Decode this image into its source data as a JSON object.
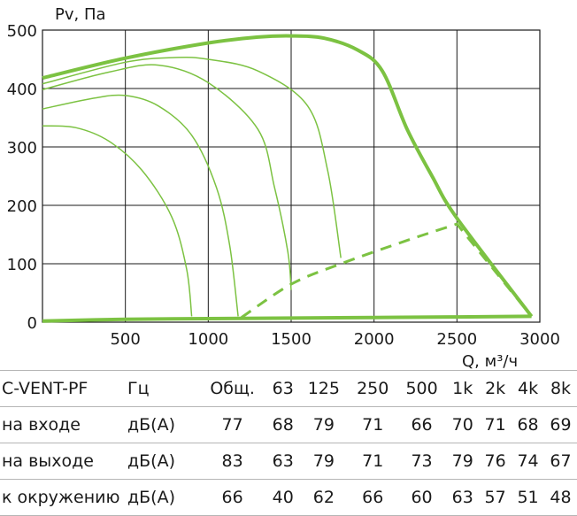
{
  "chart_data": {
    "type": "line",
    "ylabel": "Pv, Па",
    "xlabel": "Q, м³/ч",
    "xlim": [
      0,
      3000
    ],
    "ylim": [
      0,
      500
    ],
    "x_ticks": [
      500,
      1000,
      1500,
      2000,
      2500,
      3000
    ],
    "x_tick_labels": [
      "500",
      "1000",
      "1500",
      "2000",
      "2500",
      "3000"
    ],
    "y_ticks": [
      0,
      100,
      200,
      300,
      400,
      500
    ],
    "y_tick_labels": [
      "0",
      "100",
      "200",
      "300",
      "400",
      "500"
    ],
    "grid": true,
    "colors": {
      "curve": "#7cc242",
      "grid": "#1a1a1a",
      "table_rule": "#b5b5b5"
    },
    "series": [
      {
        "style": "thick",
        "points": [
          [
            0,
            418
          ],
          [
            500,
            452
          ],
          [
            1000,
            478
          ],
          [
            1300,
            488
          ],
          [
            1500,
            490
          ],
          [
            1700,
            486
          ],
          [
            1900,
            466
          ],
          [
            2050,
            430
          ],
          [
            2200,
            330
          ],
          [
            2350,
            250
          ],
          [
            2500,
            178
          ],
          [
            2950,
            10
          ]
        ]
      },
      {
        "style": "thin",
        "points": [
          [
            0,
            408
          ],
          [
            500,
            445
          ],
          [
            800,
            453
          ],
          [
            1000,
            450
          ],
          [
            1300,
            430
          ],
          [
            1600,
            370
          ],
          [
            1720,
            260
          ],
          [
            1800,
            110
          ]
        ]
      },
      {
        "style": "thin",
        "points": [
          [
            0,
            398
          ],
          [
            400,
            428
          ],
          [
            700,
            440
          ],
          [
            1000,
            410
          ],
          [
            1300,
            330
          ],
          [
            1400,
            230
          ],
          [
            1480,
            120
          ],
          [
            1500,
            55
          ]
        ]
      },
      {
        "style": "thin",
        "points": [
          [
            0,
            365
          ],
          [
            300,
            383
          ],
          [
            500,
            388
          ],
          [
            700,
            370
          ],
          [
            900,
            320
          ],
          [
            1050,
            230
          ],
          [
            1130,
            130
          ],
          [
            1180,
            10
          ]
        ]
      },
      {
        "style": "thin",
        "points": [
          [
            0,
            336
          ],
          [
            200,
            333
          ],
          [
            400,
            310
          ],
          [
            600,
            260
          ],
          [
            780,
            180
          ],
          [
            870,
            90
          ],
          [
            900,
            10
          ]
        ]
      },
      {
        "style": "thick",
        "points": [
          [
            0,
            2
          ],
          [
            500,
            5
          ],
          [
            1000,
            6
          ],
          [
            1500,
            7
          ],
          [
            2000,
            8
          ],
          [
            2500,
            9
          ],
          [
            2950,
            10
          ]
        ]
      },
      {
        "style": "dashed",
        "points": [
          [
            1200,
            8
          ],
          [
            1500,
            65
          ],
          [
            1800,
            100
          ],
          [
            2200,
            140
          ],
          [
            2500,
            168
          ],
          [
            2950,
            10
          ]
        ]
      }
    ]
  },
  "noise_table": {
    "model": "C-VENT-PF",
    "unit_header": "Гц",
    "columns": [
      "Общ.",
      "63",
      "125",
      "250",
      "500",
      "1k",
      "2k",
      "4k",
      "8k"
    ],
    "rows": [
      {
        "label": "на входе",
        "unit": "дБ(А)",
        "values": [
          "77",
          "68",
          "79",
          "71",
          "66",
          "70",
          "71",
          "68",
          "69"
        ]
      },
      {
        "label": "на выходе",
        "unit": "дБ(А)",
        "values": [
          "83",
          "63",
          "79",
          "71",
          "73",
          "79",
          "76",
          "74",
          "67"
        ]
      },
      {
        "label": "к окружению",
        "unit": "дБ(А)",
        "values": [
          "66",
          "40",
          "62",
          "66",
          "60",
          "63",
          "57",
          "51",
          "48"
        ]
      }
    ]
  }
}
